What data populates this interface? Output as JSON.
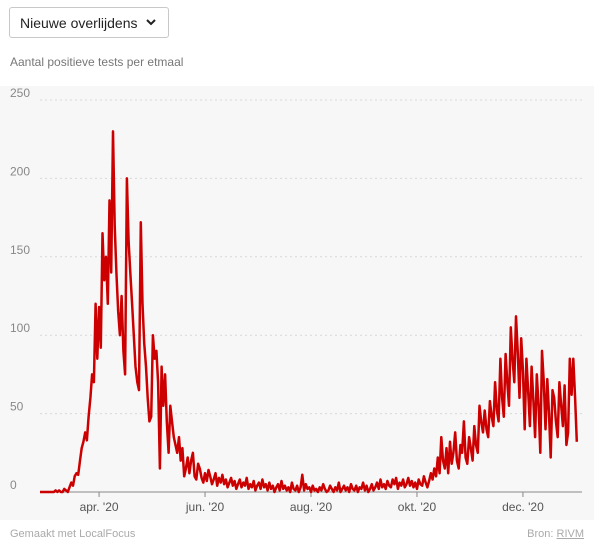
{
  "dropdown": {
    "selected": "Nieuwe overlijdens",
    "icon": "chevron-down-icon"
  },
  "subtitle": "Aantal positieve tests per etmaal",
  "footer": {
    "made_with": "Gemaakt met LocalFocus",
    "source_prefix": "Bron:",
    "source_name": "RIVM"
  },
  "chart_data": {
    "type": "line",
    "title": "Aantal positieve tests per etmaal",
    "xlabel": "",
    "ylabel": "",
    "ylim": [
      0,
      250
    ],
    "yticks": [
      0,
      50,
      100,
      150,
      200,
      250
    ],
    "grid": true,
    "color": "#cc0000",
    "x_start": "2020-02-27",
    "x_end": "2021-01-04",
    "xticks": [
      {
        "date": "2020-04-01",
        "label": "apr. '20"
      },
      {
        "date": "2020-06-01",
        "label": "jun. '20"
      },
      {
        "date": "2020-08-01",
        "label": "aug. '20"
      },
      {
        "date": "2020-10-01",
        "label": "okt. '20"
      },
      {
        "date": "2020-12-01",
        "label": "dec. '20"
      }
    ],
    "series": [
      {
        "values": [
          0,
          0,
          0,
          0,
          0,
          0,
          0,
          0,
          0,
          1,
          0,
          1,
          0,
          0,
          2,
          1,
          0,
          3,
          6,
          4,
          10,
          12,
          11,
          20,
          28,
          32,
          38,
          33,
          48,
          60,
          75,
          70,
          120,
          85,
          118,
          92,
          165,
          135,
          150,
          120,
          186,
          140,
          230,
          170,
          140,
          115,
          100,
          125,
          90,
          75,
          200,
          160,
          140,
          120,
          100,
          80,
          70,
          65,
          172,
          120,
          95,
          80,
          60,
          45,
          48,
          100,
          85,
          90,
          70,
          15,
          80,
          55,
          75,
          45,
          25,
          55,
          45,
          35,
          30,
          25,
          35,
          20,
          28,
          10,
          15,
          22,
          12,
          20,
          25,
          10,
          8,
          18,
          15,
          9,
          6,
          12,
          7,
          14,
          10,
          5,
          8,
          12,
          4,
          9,
          6,
          11,
          5,
          8,
          3,
          6,
          9,
          4,
          7,
          2,
          5,
          8,
          3,
          6,
          4,
          9,
          2,
          5,
          3,
          7,
          1,
          4,
          6,
          2,
          8,
          3,
          5,
          1,
          6,
          2,
          4,
          0,
          3,
          5,
          1,
          7,
          2,
          4,
          1,
          3,
          0,
          6,
          2,
          1,
          4,
          0,
          3,
          11,
          1,
          5,
          2,
          3,
          0,
          4,
          1,
          2,
          0,
          3,
          1,
          5,
          2,
          0,
          1,
          4,
          2,
          0,
          3,
          1,
          6,
          0,
          2,
          4,
          1,
          3,
          0,
          5,
          2,
          1,
          4,
          0,
          3,
          2,
          6,
          1,
          4,
          0,
          2,
          5,
          1,
          3,
          6,
          2,
          8,
          3,
          5,
          2,
          7,
          4,
          3,
          8,
          5,
          9,
          2,
          6,
          4,
          8,
          3,
          5,
          9,
          4,
          7,
          3,
          6,
          2,
          8,
          5,
          4,
          10,
          6,
          3,
          7,
          12,
          8,
          15,
          10,
          22,
          12,
          35,
          20,
          15,
          28,
          12,
          32,
          18,
          25,
          38,
          20,
          15,
          30,
          25,
          45,
          22,
          18,
          35,
          28,
          20,
          42,
          30,
          25,
          55,
          45,
          38,
          52,
          40,
          35,
          58,
          48,
          42,
          70,
          52,
          45,
          85,
          60,
          48,
          88,
          70,
          55,
          105,
          85,
          70,
          112,
          90,
          60,
          98,
          78,
          40,
          85,
          65,
          42,
          80,
          58,
          35,
          75,
          55,
          25,
          90,
          70,
          40,
          72,
          50,
          22,
          65,
          60,
          45,
          35,
          70,
          55,
          42,
          68,
          30,
          38,
          85,
          62,
          85,
          60,
          32
        ]
      }
    ]
  }
}
